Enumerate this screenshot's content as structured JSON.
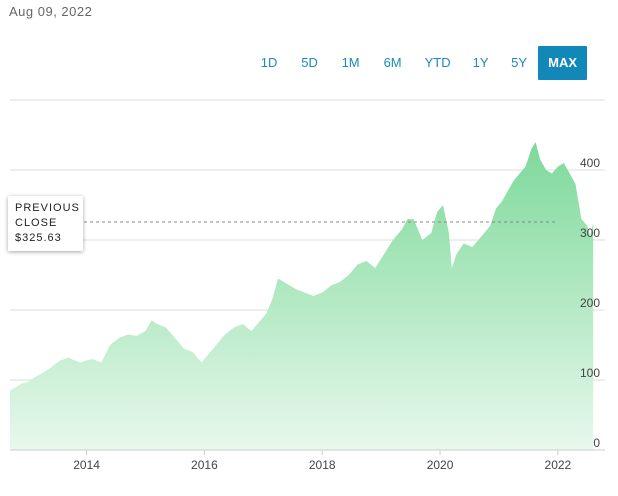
{
  "header": {
    "date": "Aug 09, 2022"
  },
  "ranges": [
    {
      "label": "1D",
      "active": false
    },
    {
      "label": "5D",
      "active": false
    },
    {
      "label": "1M",
      "active": false
    },
    {
      "label": "6M",
      "active": false
    },
    {
      "label": "YTD",
      "active": false
    },
    {
      "label": "1Y",
      "active": false
    },
    {
      "label": "5Y",
      "active": false
    },
    {
      "label": "MAX",
      "active": true
    }
  ],
  "tooltip": {
    "line1": "PREVIOUS",
    "line2": "CLOSE",
    "line3": "$325.63"
  },
  "colors": {
    "area_top": "#7dd99a",
    "area_bottom": "#e8f8ec",
    "accent": "#1288b8",
    "grid": "#dddddd"
  },
  "chart_data": {
    "type": "area",
    "title": "",
    "xlabel": "",
    "ylabel": "",
    "grid": true,
    "previous_close": 325.63,
    "xlim": [
      2012.7,
      2022.8
    ],
    "ylim": [
      0,
      440
    ],
    "x_ticks": [
      2014,
      2016,
      2018,
      2020,
      2022
    ],
    "y_ticks": [
      0,
      100,
      200,
      300,
      400
    ],
    "series": [
      {
        "x": [
          2012.7,
          2012.8,
          2012.9,
          2013.0,
          2013.1,
          2013.25,
          2013.4,
          2013.55,
          2013.7,
          2013.8,
          2013.9,
          2014.0,
          2014.1,
          2014.25,
          2014.4,
          2014.55,
          2014.7,
          2014.85,
          2015.0,
          2015.1,
          2015.2,
          2015.35,
          2015.5,
          2015.65,
          2015.8,
          2015.95,
          2016.05,
          2016.2,
          2016.35,
          2016.5,
          2016.65,
          2016.8,
          2016.95,
          2017.05,
          2017.15,
          2017.25,
          2017.35,
          2017.45,
          2017.55,
          2017.7,
          2017.85,
          2018.0,
          2018.15,
          2018.3,
          2018.45,
          2018.6,
          2018.75,
          2018.9,
          2019.05,
          2019.2,
          2019.35,
          2019.45,
          2019.55,
          2019.7,
          2019.85,
          2019.95,
          2020.05,
          2020.15,
          2020.2,
          2020.28,
          2020.4,
          2020.55,
          2020.7,
          2020.85,
          2020.95,
          2021.05,
          2021.15,
          2021.25,
          2021.35,
          2021.45,
          2021.55,
          2021.62,
          2021.7,
          2021.8,
          2021.9,
          2022.0,
          2022.1,
          2022.2,
          2022.3,
          2022.4,
          2022.5,
          2022.55,
          2022.6
        ],
        "values": [
          85,
          90,
          95,
          97,
          103,
          110,
          118,
          128,
          132,
          128,
          125,
          128,
          130,
          125,
          150,
          160,
          165,
          163,
          170,
          185,
          180,
          175,
          160,
          145,
          140,
          125,
          135,
          150,
          165,
          175,
          180,
          170,
          185,
          195,
          215,
          245,
          240,
          235,
          230,
          225,
          220,
          225,
          235,
          240,
          250,
          265,
          270,
          260,
          280,
          300,
          315,
          330,
          330,
          300,
          310,
          340,
          350,
          310,
          260,
          280,
          295,
          290,
          305,
          320,
          345,
          355,
          370,
          385,
          395,
          405,
          430,
          440,
          415,
          400,
          395,
          405,
          410,
          395,
          380,
          330,
          320,
          305,
          325
        ]
      }
    ]
  }
}
